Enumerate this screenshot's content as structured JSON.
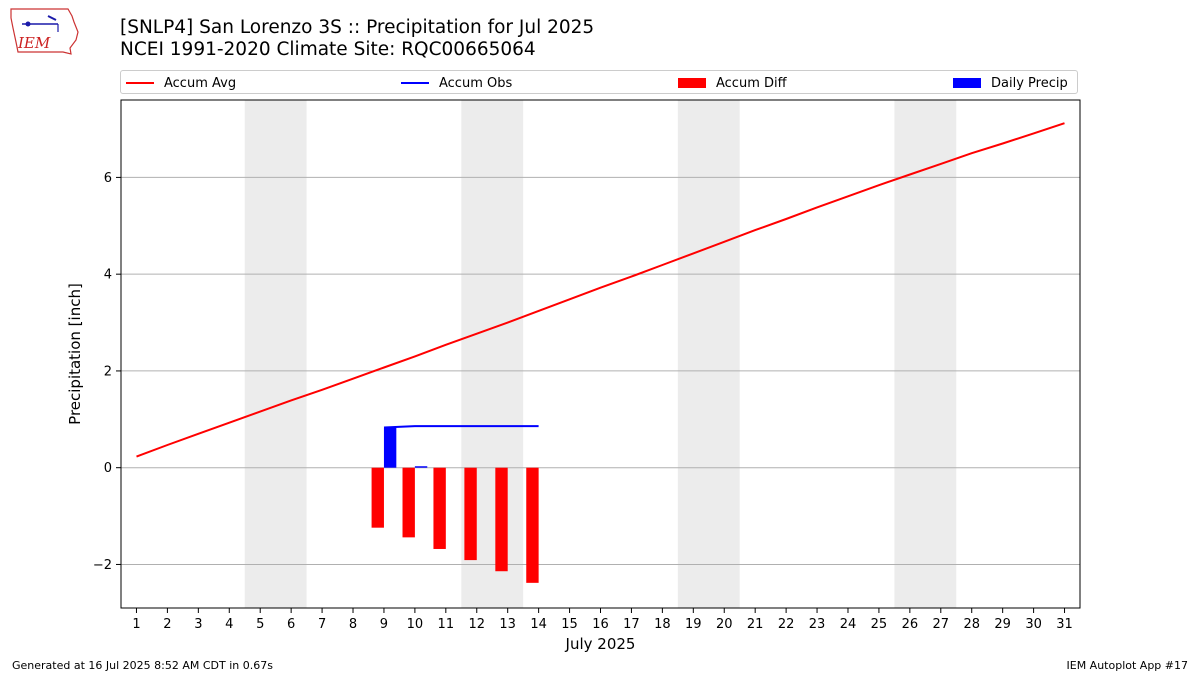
{
  "logo": {
    "text": "IEM"
  },
  "title": {
    "line1": "[SNLP4] San Lorenzo 3S :: Precipitation for Jul 2025",
    "line2": "NCEI 1991-2020 Climate Site: RQC00665064"
  },
  "legend": [
    {
      "label": "Accum Avg",
      "kind": "line",
      "color": "#ff0000"
    },
    {
      "label": "Accum Obs",
      "kind": "line",
      "color": "#0000ff"
    },
    {
      "label": "Accum Diff",
      "kind": "patch",
      "color": "#ff0000"
    },
    {
      "label": "Daily Precip",
      "kind": "patch",
      "color": "#0000ff"
    }
  ],
  "footer": {
    "left": "Generated at 16 Jul 2025 8:52 AM CDT in 0.67s",
    "right": "IEM Autoplot App #17"
  },
  "chart_data": {
    "type": "bar",
    "xlabel": "July 2025",
    "ylabel": "Precipitation [inch]",
    "xlim": [
      0.5,
      31.5
    ],
    "ylim": [
      -2.9,
      7.6
    ],
    "yticks": [
      -2,
      0,
      2,
      4,
      6
    ],
    "ytick_labels": [
      "−2",
      "0",
      "2",
      "4",
      "6"
    ],
    "xticks": [
      1,
      2,
      3,
      4,
      5,
      6,
      7,
      8,
      9,
      10,
      11,
      12,
      13,
      14,
      15,
      16,
      17,
      18,
      19,
      20,
      21,
      22,
      23,
      24,
      25,
      26,
      27,
      28,
      29,
      30,
      31
    ],
    "grid": "horizontal",
    "weekend_shading": [
      [
        5,
        6
      ],
      [
        12,
        13
      ],
      [
        19,
        20
      ],
      [
        26,
        27
      ]
    ],
    "series": [
      {
        "name": "Accum Avg",
        "type": "line",
        "color": "#ff0000",
        "x": [
          1,
          2,
          3,
          4,
          5,
          6,
          7,
          8,
          9,
          10,
          11,
          12,
          13,
          14,
          15,
          16,
          17,
          18,
          19,
          20,
          21,
          22,
          23,
          24,
          25,
          26,
          27,
          28,
          29,
          30,
          31
        ],
        "values": [
          0.23,
          0.47,
          0.7,
          0.93,
          1.16,
          1.39,
          1.61,
          1.84,
          2.07,
          2.3,
          2.54,
          2.77,
          3.0,
          3.24,
          3.48,
          3.72,
          3.95,
          4.19,
          4.43,
          4.67,
          4.91,
          5.14,
          5.38,
          5.61,
          5.84,
          6.06,
          6.28,
          6.5,
          6.7,
          6.91,
          7.12
        ]
      },
      {
        "name": "Accum Obs",
        "type": "line",
        "color": "#0000ff",
        "x": [
          9,
          10,
          11,
          12,
          13,
          14
        ],
        "values": [
          0.83,
          0.86,
          0.86,
          0.86,
          0.86,
          0.86
        ]
      },
      {
        "name": "Accum Diff",
        "type": "bar",
        "color": "#ff0000",
        "x": [
          9,
          10,
          11,
          12,
          13,
          14
        ],
        "values": [
          -1.24,
          -1.44,
          -1.68,
          -1.91,
          -2.14,
          -2.38
        ]
      },
      {
        "name": "Daily Precip",
        "type": "bar",
        "color": "#0000ff",
        "x": [
          9,
          10
        ],
        "values": [
          0.83,
          0.03
        ]
      }
    ]
  }
}
